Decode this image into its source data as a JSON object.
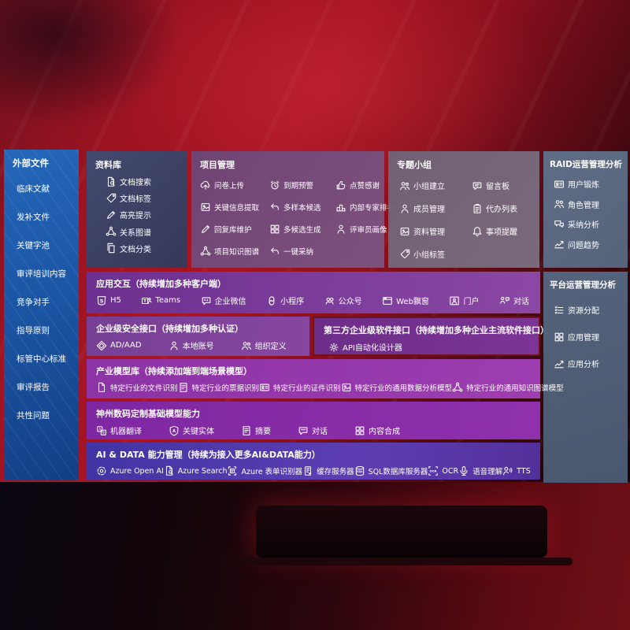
{
  "colors": {
    "background_red": "#9e1322",
    "sidebar_blue": "#1b55a4",
    "library_navy": "#3f4c72",
    "project_mauve": "#6c4677",
    "groups_gray_purple": "#6f6277",
    "slate_panel": "#60708a",
    "row_purple": "#8b48a4",
    "row_magenta": "#9d3db0",
    "row_indigo": "#4134a4",
    "text": "#ffffff"
  },
  "sidebar": {
    "title": "外部文件",
    "items": [
      "临床文献",
      "发补文件",
      "关键字池",
      "审评培训内容",
      "竞争对手",
      "指导原则",
      "标管中心标准",
      "审评报告",
      "共性问题"
    ]
  },
  "panels": {
    "library": {
      "title": "资料库",
      "items": [
        {
          "label": "文档搜索",
          "icon": "doc-search"
        },
        {
          "label": "文档标签",
          "icon": "doc-tag"
        },
        {
          "label": "高亮提示",
          "icon": "highlight-pen"
        },
        {
          "label": "关系图谱",
          "icon": "relation-graph"
        },
        {
          "label": "文档分类",
          "icon": "doc-category"
        }
      ]
    },
    "project": {
      "title": "项目管理",
      "items": [
        {
          "label": "问卷上传",
          "icon": "cloud-upload"
        },
        {
          "label": "到期预警",
          "icon": "alarm"
        },
        {
          "label": "点赞感谢",
          "icon": "thumbs-up"
        },
        {
          "label": "关键信息提取",
          "icon": "info-extract"
        },
        {
          "label": "多样本候选",
          "icon": "multi-sample-arrow"
        },
        {
          "label": "内部专家排名",
          "icon": "ranking-podium"
        },
        {
          "label": "回复库维护",
          "icon": "reply-pen"
        },
        {
          "label": "多候选生成",
          "icon": "multi-generate-grid"
        },
        {
          "label": "评审员画像",
          "icon": "reviewer-person"
        },
        {
          "label": "项目知识图谱",
          "icon": "knowledge-graph"
        },
        {
          "label": "一键采纳",
          "icon": "adopt-arrow"
        }
      ]
    },
    "groups": {
      "title": "专题小组",
      "items": [
        {
          "label": "小组建立",
          "icon": "group-users"
        },
        {
          "label": "留言板",
          "icon": "message-board"
        },
        {
          "label": "成员管理",
          "icon": "member-person"
        },
        {
          "label": "代办列表",
          "icon": "todo-clipboard"
        },
        {
          "label": "资料管理",
          "icon": "data-album"
        },
        {
          "label": "事项提醒",
          "icon": "reminder-bell"
        },
        {
          "label": "小组标签",
          "icon": "group-tag"
        }
      ]
    },
    "raid": {
      "title": "RAID运营管理分析",
      "items": [
        {
          "label": "用户锻炼",
          "icon": "user-idcard"
        },
        {
          "label": "角色管理",
          "icon": "role-users"
        },
        {
          "label": "采纳分析",
          "icon": "qa-bubbles"
        },
        {
          "label": "问题趋势",
          "icon": "trend-chart"
        }
      ]
    },
    "platform": {
      "title": "平台运营管理分析",
      "items": [
        {
          "label": "资源分配",
          "icon": "resource-list"
        },
        {
          "label": "应用管理",
          "icon": "app-grid"
        },
        {
          "label": "应用分析",
          "icon": "analysis-chart"
        }
      ]
    }
  },
  "rows": {
    "interaction": {
      "title": "应用交互（持续增加多种客户端）",
      "items": [
        {
          "label": "H5",
          "icon": "html5"
        },
        {
          "label": "Teams",
          "icon": "teams"
        },
        {
          "label": "企业微信",
          "icon": "wechat-work"
        },
        {
          "label": "小程序",
          "icon": "mini-program"
        },
        {
          "label": "公众号",
          "icon": "official-account"
        },
        {
          "label": "Web飘窗",
          "icon": "web-window"
        },
        {
          "label": "门户",
          "icon": "portal"
        },
        {
          "label": "对话",
          "icon": "dialog-users"
        }
      ]
    },
    "security": {
      "title": "企业级安全接口（持续增加多种认证）",
      "items": [
        {
          "label": "AD/AAD",
          "icon": "ad-diamond"
        },
        {
          "label": "本地账号",
          "icon": "local-account"
        },
        {
          "label": "组织定义",
          "icon": "org-users"
        }
      ]
    },
    "third_party": {
      "title": "第三方企业级软件接口（持续增加多种企业主流软件接口）",
      "items": [
        {
          "label": "API自动化设计器",
          "icon": "api-gear"
        }
      ]
    },
    "industry": {
      "title": "产业模型库（持续添加端到端场景模型）",
      "items": [
        {
          "label": "特定行业的文件识别",
          "icon": "file-doc"
        },
        {
          "label": "特定行业的票据识别",
          "icon": "receipt-doc"
        },
        {
          "label": "特定行业的证件识别",
          "icon": "cert-idcard"
        },
        {
          "label": "特定行业的通用数据分析模型",
          "icon": "data-model-frame"
        },
        {
          "label": "特定行业的通用知识图谱模型",
          "icon": "kg-network"
        }
      ]
    },
    "shenzhou": {
      "title": "神州数码定制基础模型能力",
      "items": [
        {
          "label": "机器翻译",
          "icon": "translate"
        },
        {
          "label": "关键实体",
          "icon": "entity-shield"
        },
        {
          "label": "摘要",
          "icon": "summary-doc"
        },
        {
          "label": "对话",
          "icon": "chat-bubble"
        },
        {
          "label": "内容合成",
          "icon": "compose-grid"
        }
      ]
    },
    "aidata": {
      "title": "AI & DATA 能力管理（持续为接入更多AI&DATA能力）",
      "items": [
        {
          "label": "Azure Open AI",
          "icon": "openai"
        },
        {
          "label": "Azure Search",
          "icon": "azure-search"
        },
        {
          "label": "Azure 表单识别器",
          "icon": "form-recognizer"
        },
        {
          "label": "缓存服务器",
          "icon": "cache-server"
        },
        {
          "label": "SQL数据库服务器",
          "icon": "sql-database"
        },
        {
          "label": "OCR",
          "icon": "ocr"
        },
        {
          "label": "语音理解",
          "icon": "speech-understanding"
        },
        {
          "label": "TTS",
          "icon": "tts"
        }
      ]
    }
  }
}
